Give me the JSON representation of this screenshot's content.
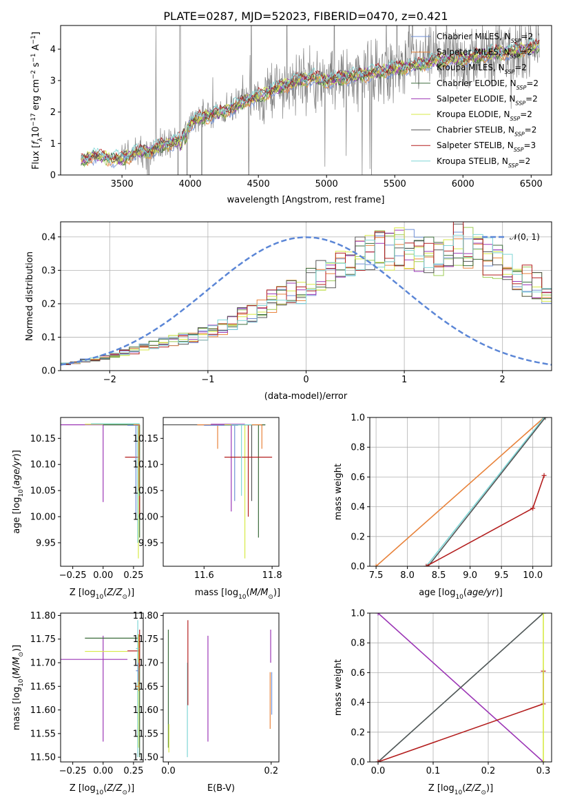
{
  "colors": {
    "chabrier_miles": "#6f8fd6",
    "salpeter_miles": "#e8823a",
    "kroupa_miles": "#9ccc55",
    "chabrier_elodie": "#3b6b3b",
    "salpeter_elodie": "#9b35b5",
    "kroupa_elodie": "#d7ea45",
    "chabrier_stelib": "#555555",
    "salpeter_stelib": "#b31d1d",
    "kroupa_stelib": "#7fd6d6",
    "data": "#808080",
    "normal": "#5b86d6"
  },
  "chart_data": [
    {
      "type": "line",
      "title": "PLATE=0287, MJD=52023, FIBERID=0470, z=0.421",
      "xlabel": "wavelength [Angstrom, rest frame]",
      "ylabel": "Flux [f_λ 10^-17 erg cm^-2 s^-1 A^-1]",
      "xlim": [
        3050,
        6650
      ],
      "ylim": [
        0,
        4.75
      ],
      "xticks": [
        3500,
        4000,
        4500,
        5000,
        5500,
        6000,
        6500
      ],
      "yticks": [
        0,
        1,
        2,
        3,
        4
      ],
      "grid": false,
      "legend_position": "upper-right",
      "legend": [
        "Chabrier MILES, N_SSP=2",
        "Salpeter MILES, N_SSP=2",
        "Kroupa MILES, N_SSP=2",
        "Chabrier ELODIE, N_SSP=2",
        "Salpeter ELODIE, N_SSP=2",
        "Kroupa ELODIE, N_SSP=2",
        "Chabrier STELIB, N_SSP=2",
        "Salpeter STELIB, N_SSP=3",
        "Kroupa STELIB, N_SSP=2"
      ],
      "continuum_anchor_points": {
        "wavelength": [
          3200,
          3300,
          3400,
          3500,
          3600,
          3700,
          3800,
          3900,
          3950,
          4000,
          4100,
          4200,
          4300,
          4400,
          4500,
          4600,
          4700,
          4800,
          4900,
          5000,
          5200,
          5400,
          5600,
          5800,
          6000,
          6200,
          6400,
          6550
        ],
        "flux": [
          0.45,
          0.62,
          0.55,
          0.5,
          0.72,
          0.75,
          0.95,
          1.05,
          1.3,
          1.65,
          1.85,
          1.95,
          2.1,
          2.35,
          2.5,
          2.7,
          2.85,
          3.0,
          3.1,
          3.0,
          3.15,
          3.3,
          3.45,
          3.65,
          3.7,
          3.85,
          3.95,
          4.1
        ]
      }
    },
    {
      "type": "histogram",
      "xlabel": "(data-model)/error",
      "ylabel": "Normed distribution",
      "xlim": [
        -2.5,
        2.5
      ],
      "ylim": [
        0,
        0.445
      ],
      "xticks": [
        -2,
        -1,
        0,
        1,
        2
      ],
      "yticks": [
        0.0,
        0.1,
        0.2,
        0.3,
        0.4
      ],
      "grid": true,
      "legend_position": "upper-right",
      "legend": [
        "𝒩(0, 1)"
      ],
      "bin_width": 0.1,
      "bin_start": -2.5,
      "histogram_envelope": [
        0.02,
        0.025,
        0.03,
        0.035,
        0.04,
        0.045,
        0.055,
        0.06,
        0.07,
        0.075,
        0.085,
        0.09,
        0.095,
        0.1,
        0.11,
        0.12,
        0.13,
        0.14,
        0.16,
        0.17,
        0.19,
        0.21,
        0.22,
        0.23,
        0.24,
        0.26,
        0.28,
        0.3,
        0.31,
        0.32,
        0.34,
        0.35,
        0.36,
        0.36,
        0.37,
        0.37,
        0.36,
        0.35,
        0.34,
        0.36,
        0.38,
        0.37,
        0.35,
        0.34,
        0.32,
        0.3,
        0.28,
        0.27,
        0.25,
        0.24
      ]
    },
    {
      "type": "scatter",
      "panel": "age-vs-metallicity",
      "xlabel": "Z [log10(Z/Z⊙)]",
      "ylabel": "age [log10(age/yr)]",
      "xlim": [
        -0.35,
        0.33
      ],
      "ylim": [
        9.905,
        10.19
      ],
      "xticks": [
        -0.25,
        0.0,
        0.25
      ],
      "yticks": [
        9.95,
        10.0,
        10.05,
        10.1,
        10.15
      ]
    },
    {
      "type": "scatter",
      "panel": "age-vs-mass",
      "xlabel": "mass [log10(M/M⊙)]",
      "ylabel": "",
      "xlim": [
        11.48,
        11.82
      ],
      "ylim": [
        9.905,
        10.19
      ],
      "xticks": [
        11.6,
        11.8
      ],
      "yticks": [
        9.95,
        10.0,
        10.05,
        10.1,
        10.15
      ]
    },
    {
      "type": "line",
      "panel": "mass-weight-vs-age",
      "xlabel": "age [log10(age/yr)]",
      "ylabel": "mass weight",
      "xlim": [
        7.4,
        10.3
      ],
      "ylim": [
        0,
        1
      ],
      "xticks": [
        7.5,
        8.0,
        8.5,
        9.0,
        9.5,
        10.0
      ],
      "yticks": [
        0.0,
        0.2,
        0.4,
        0.6,
        0.8,
        1.0
      ],
      "grid": true,
      "series": [
        {
          "name": "Salpeter MILES",
          "x": [
            7.5,
            10.18
          ],
          "y": [
            0.0,
            1.0
          ]
        },
        {
          "name": "Kroupa STELIB",
          "x": [
            8.3,
            10.18
          ],
          "y": [
            0.0,
            1.0
          ]
        },
        {
          "name": "Chabrier STELIB",
          "x": [
            8.33,
            10.2
          ],
          "y": [
            0.0,
            1.0
          ]
        },
        {
          "name": "Salpeter STELIB",
          "x": [
            8.3,
            10.0,
            10.18
          ],
          "y": [
            0.0,
            0.39,
            0.61
          ]
        }
      ]
    },
    {
      "type": "scatter",
      "panel": "mass-vs-metallicity",
      "xlabel": "Z [log10(Z/Z⊙)]",
      "ylabel": "mass [log10(M/M⊙)]",
      "xlim": [
        -0.35,
        0.33
      ],
      "ylim": [
        11.49,
        11.805
      ],
      "xticks": [
        -0.25,
        0.0,
        0.25
      ],
      "yticks": [
        11.5,
        11.55,
        11.6,
        11.65,
        11.7,
        11.75,
        11.8
      ]
    },
    {
      "type": "scatter",
      "panel": "mass-vs-extinction",
      "xlabel": "E(B-V)",
      "ylabel": "",
      "xlim": [
        -0.01,
        0.215
      ],
      "ylim": [
        11.49,
        11.805
      ],
      "xticks": [
        0.0,
        0.2
      ],
      "yticks": [
        11.5,
        11.55,
        11.6,
        11.65,
        11.7,
        11.75,
        11.8
      ]
    },
    {
      "type": "line",
      "panel": "mass-weight-vs-metallicity",
      "xlabel": "Z [log10(Z/Z⊙)]",
      "ylabel": "mass weight",
      "xlim": [
        -0.015,
        0.315
      ],
      "ylim": [
        0,
        1
      ],
      "xticks": [
        0.0,
        0.1,
        0.2,
        0.3
      ],
      "yticks": [
        0.0,
        0.2,
        0.4,
        0.6,
        0.8,
        1.0
      ],
      "grid": true,
      "series": [
        {
          "name": "Salpeter ELODIE",
          "x": [
            0.0,
            0.3
          ],
          "y": [
            1.0,
            0.0
          ]
        },
        {
          "name": "Kroupa STELIB",
          "x": [
            0.0,
            0.3
          ],
          "y": [
            0.0,
            1.0
          ]
        },
        {
          "name": "Chabrier STELIB",
          "x": [
            0.0,
            0.3
          ],
          "y": [
            0.0,
            1.0
          ]
        },
        {
          "name": "Salpeter STELIB",
          "x": [
            0.0,
            0.3,
            0.3
          ],
          "y": [
            0.0,
            0.39,
            0.61
          ]
        },
        {
          "name": "Kroupa ELODIE",
          "x": [
            0.3,
            0.3
          ],
          "y": [
            0.0,
            1.0
          ]
        }
      ]
    }
  ]
}
